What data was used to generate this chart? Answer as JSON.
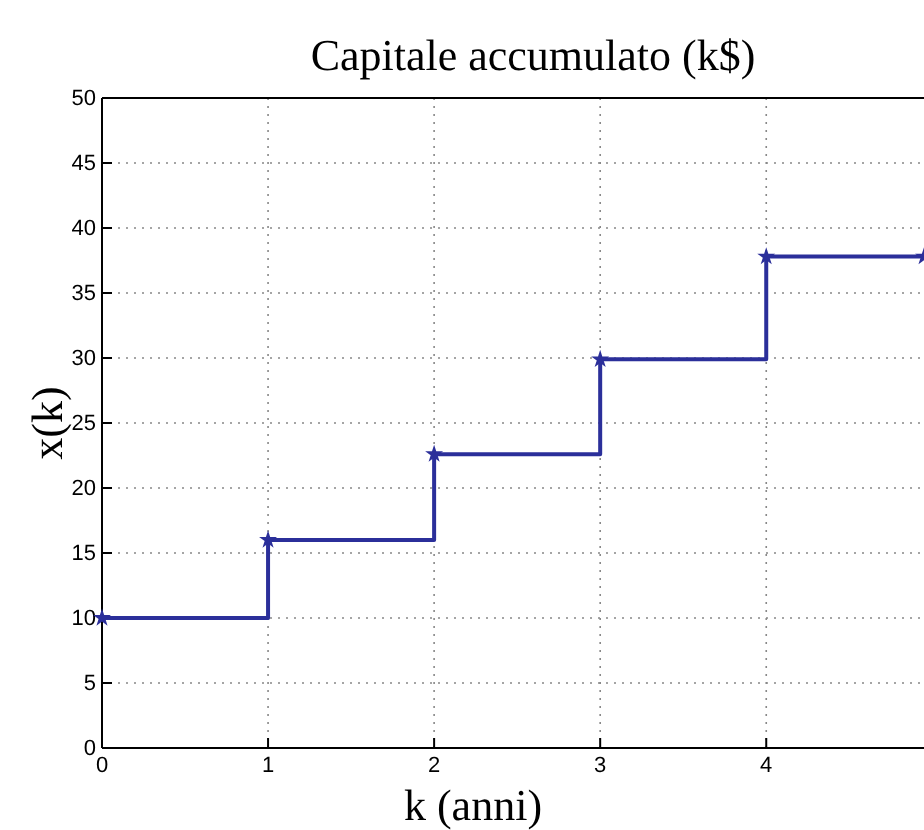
{
  "chart_data": {
    "type": "step",
    "title": "Capitale accumulato (k$)",
    "xlabel": "k (anni)",
    "ylabel": "x(k)",
    "x": [
      0,
      1,
      2,
      3,
      4,
      4.95
    ],
    "series": [
      {
        "color": "#2b2f9a",
        "values": [
          10,
          16,
          22.6,
          29.9,
          37.8,
          37.8
        ]
      }
    ],
    "xlim": [
      0,
      4.95
    ],
    "xticks": [
      0,
      1,
      2,
      3,
      4
    ],
    "ylim": [
      0,
      50
    ],
    "yticks": [
      0,
      5,
      10,
      15,
      20,
      25,
      30,
      35,
      40,
      45,
      50
    ],
    "grid": true,
    "marker": "star",
    "line_style": "solid"
  }
}
